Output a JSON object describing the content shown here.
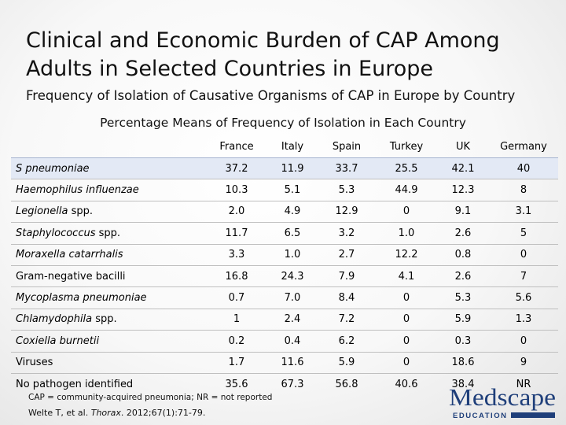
{
  "slide": {
    "title_line1": "Clinical and Economic Burden of CAP Among",
    "title_line2": "Adults in Selected Countries in Europe",
    "subtitle": "Frequency of Isolation of Causative Organisms of CAP in Europe by Country",
    "caption": "Percentage Means of Frequency of Isolation in Each Country"
  },
  "table": {
    "columns": [
      "",
      "France",
      "Italy",
      "Spain",
      "Turkey",
      "UK",
      "Germany"
    ],
    "rows": [
      {
        "org": "S pneumoniae",
        "org_italic": "S pneumoniae",
        "org_suffix": "",
        "values": [
          "37.2",
          "11.9",
          "33.7",
          "25.5",
          "42.1",
          "40"
        ]
      },
      {
        "org": "Haemophilus influenzae",
        "org_italic": "Haemophilus influenzae",
        "org_suffix": "",
        "values": [
          "10.3",
          "5.1",
          "5.3",
          "44.9",
          "12.3",
          "8"
        ]
      },
      {
        "org": "Legionella spp.",
        "org_italic": "Legionella",
        "org_suffix": " spp.",
        "values": [
          "2.0",
          "4.9",
          "12.9",
          "0",
          "9.1",
          "3.1"
        ]
      },
      {
        "org": "Staphylococcus spp.",
        "org_italic": "Staphylococcus",
        "org_suffix": " spp.",
        "values": [
          "11.7",
          "6.5",
          "3.2",
          "1.0",
          "2.6",
          "5"
        ]
      },
      {
        "org": "Moraxella catarrhalis",
        "org_italic": "Moraxella catarrhalis",
        "org_suffix": "",
        "values": [
          "3.3",
          "1.0",
          "2.7",
          "12.2",
          "0.8",
          "0"
        ]
      },
      {
        "org": "Gram-negative bacilli",
        "org_italic": "",
        "org_suffix": "Gram-negative bacilli",
        "values": [
          "16.8",
          "24.3",
          "7.9",
          "4.1",
          "2.6",
          "7"
        ]
      },
      {
        "org": "Mycoplasma pneumoniae",
        "org_italic": "Mycoplasma pneumoniae",
        "org_suffix": "",
        "values": [
          "0.7",
          "7.0",
          "8.4",
          "0",
          "5.3",
          "5.6"
        ]
      },
      {
        "org": "Chlamydophila spp.",
        "org_italic": "Chlamydophila",
        "org_suffix": " spp.",
        "values": [
          "1",
          "2.4",
          "7.2",
          "0",
          "5.9",
          "1.3"
        ]
      },
      {
        "org": "Coxiella burnetii",
        "org_italic": "Coxiella burnetii",
        "org_suffix": "",
        "values": [
          "0.2",
          "0.4",
          "6.2",
          "0",
          "0.3",
          "0"
        ]
      },
      {
        "org": "Viruses",
        "org_italic": "",
        "org_suffix": "Viruses",
        "values": [
          "1.7",
          "11.6",
          "5.9",
          "0",
          "18.6",
          "9"
        ]
      },
      {
        "org": "No pathogen identified",
        "org_italic": "",
        "org_suffix": "No pathogen identified",
        "values": [
          "35.6",
          "67.3",
          "56.8",
          "40.6",
          "38.4",
          "NR"
        ]
      }
    ],
    "highlight_color": "#e3e9f5"
  },
  "footnote": "CAP = community-acquired pneumonia; NR = not reported",
  "citation": {
    "authors": "Welte T, et al. ",
    "journal": "Thorax",
    "details": ". 2012;67(1):71-79."
  },
  "logo": {
    "name": "Medscape",
    "tagline": "EDUCATION",
    "color": "#1f3f7a"
  }
}
